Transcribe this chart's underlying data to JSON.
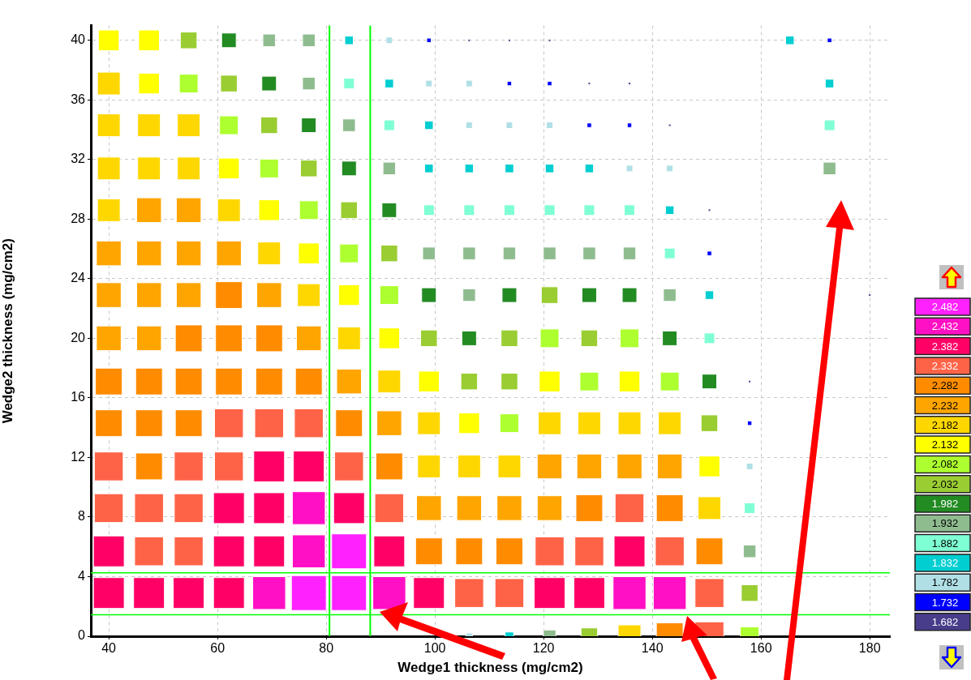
{
  "chart_data": {
    "type": "scatter",
    "xlabel": "Wedge1 thickness (mg/cm2)",
    "ylabel": "Wedge2 thickness (mg/cm2)",
    "xlim": [
      36.7,
      183.7
    ],
    "xticks": [
      40,
      60,
      80,
      100,
      120,
      140,
      160,
      180
    ],
    "ylim": [
      0,
      41
    ],
    "yticks": [
      0,
      4,
      8,
      12,
      16,
      20,
      24,
      28,
      32,
      36,
      40
    ],
    "grid": true,
    "legend": "right",
    "marker": "square",
    "ref_lines": [
      {
        "axis": "x",
        "value": 80.6,
        "color": "#00ff00"
      },
      {
        "axis": "x",
        "value": 88.1,
        "color": "#00ff00"
      },
      {
        "axis": "y",
        "value": 4.26,
        "color": "#00ff00"
      },
      {
        "axis": "y",
        "value": 1.44,
        "color": "#00ff00"
      }
    ],
    "series": [
      {
        "name": "2.482",
        "color": "#ff22ff",
        "x": [
          84.2,
          76.8,
          84.2
        ],
        "values": [
          5.7,
          2.9,
          2.9
        ]
      },
      {
        "name": "2.432",
        "color": "#ff10c4",
        "x": [
          76.8,
          76.8,
          69.5,
          91.6,
          135.8,
          143.2
        ],
        "values": [
          8.6,
          5.7,
          2.9,
          2.9,
          2.9,
          2.9
        ]
      },
      {
        "name": "2.382",
        "color": "#ff0066",
        "x": [
          69.5,
          76.8,
          62.1,
          69.5,
          84.2,
          40,
          62.1,
          69.5,
          91.6,
          135.8,
          40,
          47.4,
          54.7,
          62.1,
          98.9,
          121.1,
          128.4
        ],
        "values": [
          11.4,
          11.4,
          8.6,
          8.6,
          8.6,
          5.7,
          5.7,
          5.7,
          5.7,
          5.7,
          2.9,
          2.9,
          2.9,
          2.9,
          2.9,
          2.9,
          2.9
        ]
      },
      {
        "name": "2.332",
        "color": "#ff6347",
        "x": [
          62.1,
          69.5,
          76.8,
          40,
          54.7,
          62.1,
          84.2,
          40,
          47.4,
          54.7,
          91.6,
          135.8,
          47.4,
          54.7,
          121.1,
          128.4,
          143.2,
          106.3,
          113.7,
          150.5,
          150.5
        ],
        "values": [
          14.3,
          14.3,
          14.3,
          11.4,
          11.4,
          11.4,
          11.4,
          8.6,
          8.6,
          8.6,
          8.6,
          8.6,
          5.7,
          5.7,
          5.7,
          5.7,
          5.7,
          2.9,
          2.9,
          2.9,
          0
        ]
      },
      {
        "name": "2.282",
        "color": "#ff8c00",
        "x": [
          62.1,
          54.7,
          62.1,
          69.5,
          40,
          47.4,
          54.7,
          62.1,
          69.5,
          76.8,
          40,
          47.4,
          54.7,
          84.2,
          47.4,
          91.6,
          128.4,
          143.2,
          98.9,
          106.3,
          113.7,
          150.5,
          143.2
        ],
        "values": [
          22.9,
          20,
          20,
          20,
          17.1,
          17.1,
          17.1,
          17.1,
          17.1,
          17.1,
          14.3,
          14.3,
          14.3,
          14.3,
          11.4,
          11.4,
          8.6,
          8.6,
          5.7,
          5.7,
          5.7,
          5.7,
          0
        ]
      },
      {
        "name": "2.232",
        "color": "#ffa500",
        "x": [
          47.4,
          54.7,
          40,
          47.4,
          54.7,
          62.1,
          40,
          47.4,
          54.7,
          69.5,
          40,
          47.4,
          76.8,
          84.2,
          91.6,
          121.1,
          128.4,
          135.8,
          143.2,
          98.9,
          106.3,
          113.7,
          121.1
        ],
        "values": [
          28.6,
          28.6,
          25.7,
          25.7,
          25.7,
          25.7,
          22.9,
          22.9,
          22.9,
          22.9,
          20,
          20,
          20,
          17.1,
          14.3,
          11.4,
          11.4,
          11.4,
          11.4,
          8.6,
          8.6,
          8.6,
          8.6
        ]
      },
      {
        "name": "2.182",
        "color": "#ffd700",
        "x": [
          40,
          40,
          47.4,
          54.7,
          40,
          47.4,
          54.7,
          40,
          62.1,
          69.5,
          76.8,
          84.2,
          91.6,
          98.9,
          121.1,
          128.4,
          135.8,
          143.2,
          98.9,
          106.3,
          113.7,
          150.5,
          135.8
        ],
        "values": [
          37.1,
          34.3,
          34.3,
          34.3,
          31.4,
          31.4,
          31.4,
          28.6,
          28.6,
          25.7,
          22.9,
          20,
          17.1,
          14.3,
          14.3,
          14.3,
          14.3,
          14.3,
          11.4,
          11.4,
          11.4,
          8.6,
          0
        ]
      },
      {
        "name": "2.132",
        "color": "#ffff00",
        "x": [
          40,
          47.4,
          47.4,
          62.1,
          69.5,
          76.8,
          84.2,
          91.6,
          98.9,
          121.1,
          135.8,
          106.3,
          150.5
        ],
        "values": [
          40,
          40,
          37.1,
          31.4,
          28.6,
          25.7,
          22.9,
          20,
          17.1,
          17.1,
          17.1,
          14.3,
          11.4
        ]
      },
      {
        "name": "2.082",
        "color": "#adff2f",
        "x": [
          54.7,
          62.1,
          69.5,
          76.8,
          84.2,
          91.6,
          121.1,
          135.8,
          128.4,
          143.2,
          113.7,
          157.9
        ],
        "values": [
          37.1,
          34.3,
          31.4,
          28.6,
          25.7,
          22.9,
          20,
          20,
          17.1,
          17.1,
          14.3,
          0
        ]
      },
      {
        "name": "2.032",
        "color": "#9acd32",
        "x": [
          54.7,
          62.1,
          69.5,
          76.8,
          84.2,
          91.6,
          121.1,
          98.9,
          113.7,
          128.4,
          106.3,
          113.7,
          150.5,
          157.9,
          128.4
        ],
        "values": [
          40,
          37.1,
          34.3,
          31.4,
          28.6,
          25.7,
          22.9,
          20,
          20,
          20,
          17.1,
          17.1,
          14.3,
          2.9,
          0
        ]
      },
      {
        "name": "1.982",
        "color": "#228b22",
        "x": [
          62.1,
          69.5,
          76.8,
          84.2,
          91.6,
          98.9,
          113.7,
          128.4,
          135.8,
          106.3,
          143.2,
          150.5
        ],
        "values": [
          40,
          37.1,
          34.3,
          31.4,
          28.6,
          22.9,
          22.9,
          22.9,
          22.9,
          20,
          20,
          17.1
        ]
      },
      {
        "name": "1.932",
        "color": "#8fbc8f",
        "x": [
          69.5,
          76.8,
          76.8,
          84.2,
          91.6,
          172.6,
          98.9,
          106.3,
          113.7,
          121.1,
          128.4,
          135.8,
          106.3,
          143.2,
          157.9,
          121.1
        ],
        "values": [
          40,
          40,
          37.1,
          34.3,
          31.4,
          31.4,
          25.7,
          25.7,
          25.7,
          25.7,
          25.7,
          25.7,
          22.9,
          22.9,
          5.7,
          0
        ]
      },
      {
        "name": "1.882",
        "color": "#7fffd4",
        "x": [
          84.2,
          91.6,
          172.6,
          98.9,
          106.3,
          113.7,
          121.1,
          128.4,
          135.8,
          143.2,
          150.5,
          157.9
        ],
        "values": [
          37.1,
          34.3,
          34.3,
          28.6,
          28.6,
          28.6,
          28.6,
          28.6,
          28.6,
          25.7,
          20,
          8.6
        ]
      },
      {
        "name": "1.832",
        "color": "#00ced1",
        "x": [
          84.2,
          165.3,
          91.6,
          172.6,
          98.9,
          98.9,
          106.3,
          113.7,
          121.1,
          128.4,
          143.2,
          150.5,
          113.7
        ],
        "values": [
          40,
          40,
          37.1,
          37.1,
          34.3,
          31.4,
          31.4,
          31.4,
          31.4,
          31.4,
          28.6,
          22.9,
          0
        ]
      },
      {
        "name": "1.782",
        "color": "#b0e0e6",
        "x": [
          91.6,
          98.9,
          106.3,
          106.3,
          113.7,
          121.1,
          135.8,
          143.2,
          157.9,
          106.3
        ],
        "values": [
          40,
          37.1,
          37.1,
          34.3,
          34.3,
          34.3,
          31.4,
          31.4,
          11.4,
          0
        ]
      },
      {
        "name": "1.732",
        "color": "#0000ff",
        "x": [
          98.9,
          172.6,
          113.7,
          121.1,
          128.4,
          135.8,
          150.5,
          157.9
        ],
        "values": [
          40,
          40,
          37.1,
          37.1,
          34.3,
          34.3,
          25.7,
          14.3
        ]
      },
      {
        "name": "1.682",
        "color": "#483d8b",
        "x": [
          106.3,
          113.7,
          121.1,
          128.4,
          135.8,
          143.2,
          150.5,
          180,
          157.9
        ],
        "values": [
          40,
          40,
          40,
          37.1,
          37.1,
          34.3,
          28.6,
          22.9,
          17.1
        ]
      }
    ]
  }
}
